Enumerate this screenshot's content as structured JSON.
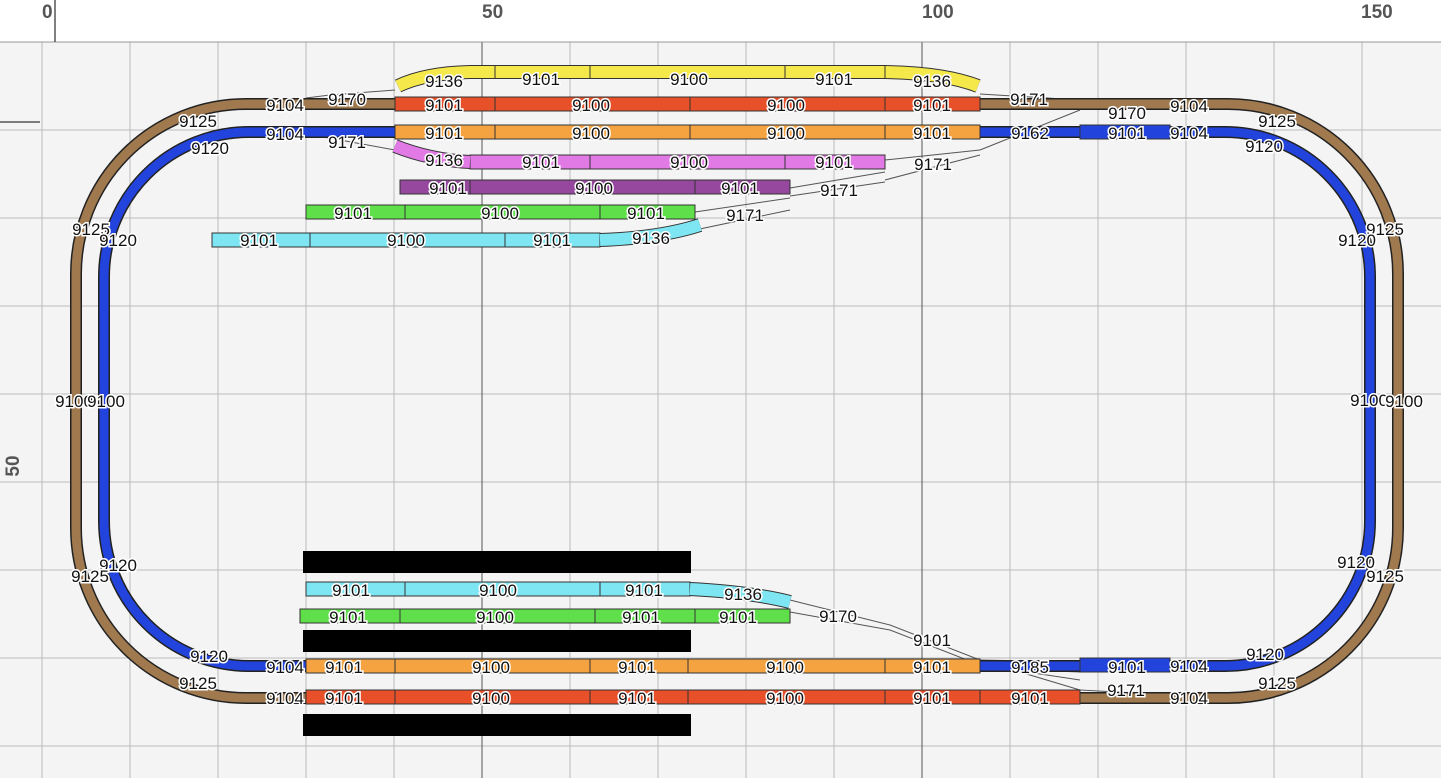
{
  "ruler": {
    "x_labels": [
      "0",
      "50",
      "100",
      "150"
    ],
    "y_labels": [
      "50"
    ]
  },
  "colors": {
    "grid": "#bdbdbd",
    "background": "#f4f4f4",
    "tie": "#ffffff",
    "brown": "#a07a4e",
    "blue": "#2244dd",
    "yellow": "#f5e84a",
    "red": "#e8502a",
    "orange": "#f5a341",
    "pink": "#e27ae6",
    "purple": "#96479e",
    "green": "#5fe04a",
    "cyan": "#7ee6f2",
    "black": "#000000"
  },
  "labels": [
    {
      "text": "9104"
    },
    {
      "text": "9170"
    },
    {
      "text": "9136"
    },
    {
      "text": "9101"
    },
    {
      "text": "9100"
    },
    {
      "text": "9101"
    },
    {
      "text": "9136"
    },
    {
      "text": "9171"
    },
    {
      "text": "9104"
    },
    {
      "text": "9125"
    },
    {
      "text": "9101"
    },
    {
      "text": "9100"
    },
    {
      "text": "9100"
    },
    {
      "text": "9101"
    },
    {
      "text": "9170"
    },
    {
      "text": "9125"
    },
    {
      "text": "9120"
    },
    {
      "text": "9104"
    },
    {
      "text": "9171"
    },
    {
      "text": "9101"
    },
    {
      "text": "9100"
    },
    {
      "text": "9100"
    },
    {
      "text": "9101"
    },
    {
      "text": "9162"
    },
    {
      "text": "9101"
    },
    {
      "text": "9104"
    },
    {
      "text": "9120"
    },
    {
      "text": "9136"
    },
    {
      "text": "9101"
    },
    {
      "text": "9100"
    },
    {
      "text": "9101"
    },
    {
      "text": "9171"
    },
    {
      "text": "9101"
    },
    {
      "text": "9100"
    },
    {
      "text": "9101"
    },
    {
      "text": "9171"
    },
    {
      "text": "9101"
    },
    {
      "text": "9100"
    },
    {
      "text": "9101"
    },
    {
      "text": "9171"
    },
    {
      "text": "9125"
    },
    {
      "text": "9120"
    },
    {
      "text": "9101"
    },
    {
      "text": "9100"
    },
    {
      "text": "9101"
    },
    {
      "text": "9136"
    },
    {
      "text": "9125"
    },
    {
      "text": "9120"
    },
    {
      "text": "9100"
    },
    {
      "text": "9100"
    },
    {
      "text": "9100"
    },
    {
      "text": "9100"
    },
    {
      "text": "9120"
    },
    {
      "text": "9125"
    },
    {
      "text": "9120"
    },
    {
      "text": "9125"
    },
    {
      "text": "9101"
    },
    {
      "text": "9100"
    },
    {
      "text": "9101"
    },
    {
      "text": "9136"
    },
    {
      "text": "9101"
    },
    {
      "text": "9100"
    },
    {
      "text": "9101"
    },
    {
      "text": "9101"
    },
    {
      "text": "9170"
    },
    {
      "text": "9101"
    },
    {
      "text": "9120"
    },
    {
      "text": "9104"
    },
    {
      "text": "9101"
    },
    {
      "text": "9100"
    },
    {
      "text": "9101"
    },
    {
      "text": "9100"
    },
    {
      "text": "9101"
    },
    {
      "text": "9185"
    },
    {
      "text": "9101"
    },
    {
      "text": "9104"
    },
    {
      "text": "9120"
    },
    {
      "text": "9125"
    },
    {
      "text": "9104"
    },
    {
      "text": "9101"
    },
    {
      "text": "9100"
    },
    {
      "text": "9101"
    },
    {
      "text": "9100"
    },
    {
      "text": "9101"
    },
    {
      "text": "9101"
    },
    {
      "text": "9171"
    },
    {
      "text": "9104"
    },
    {
      "text": "9125"
    }
  ]
}
